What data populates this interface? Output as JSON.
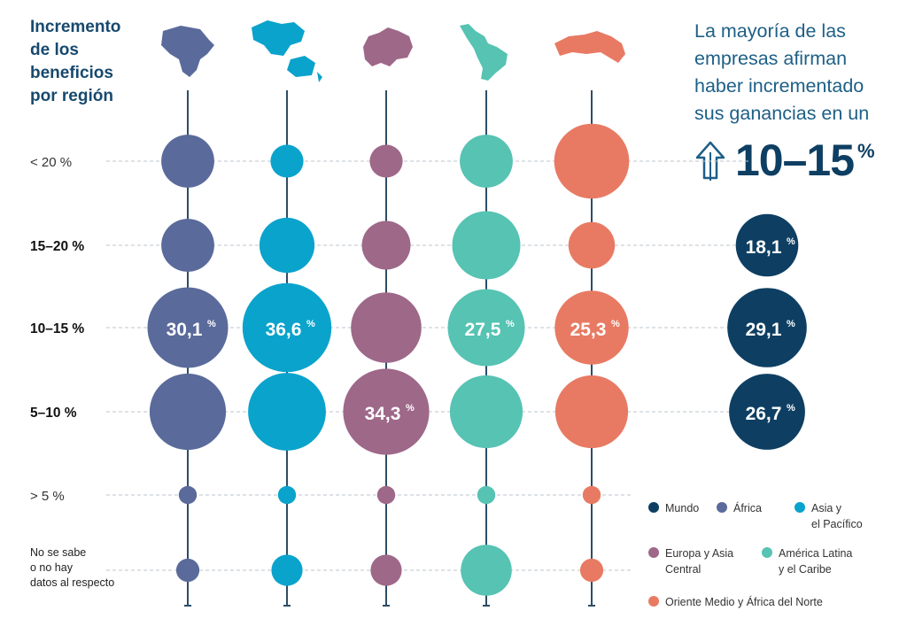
{
  "title_lines": [
    "Incremento",
    "de los",
    "beneficios",
    "por región"
  ],
  "headline_lines": [
    "La mayoría de las",
    "empresas afirman",
    "haber incrementado",
    "sus ganancias en un"
  ],
  "headline_value": "10–15",
  "headline_unit": "%",
  "chart_data": {
    "type": "bubble",
    "categories": [
      "< 20 %",
      "15–20 %",
      "10–15 %",
      "5–10 %",
      "> 5 %",
      "No se sabe o no hay datos al respecto"
    ],
    "category_bold": [
      false,
      true,
      true,
      true,
      false,
      false
    ],
    "series": [
      {
        "name": "África",
        "color": "#5a6a9b",
        "region_icon": "africa-map-icon",
        "values": [
          13,
          13,
          30.1,
          27,
          1.5,
          2.5
        ],
        "labels": [
          "",
          "",
          "30,1",
          "",
          "",
          ""
        ]
      },
      {
        "name": "Asia y el Pacífico",
        "color": "#0aa3cc",
        "region_icon": "asia-pacific-map-icon",
        "values": [
          5,
          14,
          36.6,
          28,
          1.5,
          4.5
        ],
        "labels": [
          "",
          "",
          "36,6",
          "",
          "",
          ""
        ]
      },
      {
        "name": "Europa y Asia Central",
        "color": "#9e6889",
        "region_icon": "europe-central-asia-map-icon",
        "values": [
          5,
          11,
          23,
          34.3,
          1.5,
          4.5
        ],
        "labels": [
          "",
          "",
          "",
          "34,3",
          "",
          ""
        ]
      },
      {
        "name": "América Latina y el Caribe",
        "color": "#56c3b3",
        "region_icon": "latin-america-map-icon",
        "values": [
          13,
          21.5,
          27.5,
          24.5,
          1.5,
          12
        ],
        "labels": [
          "",
          "",
          "27,5",
          "",
          "",
          ""
        ]
      },
      {
        "name": "Oriente Medio y África del Norte",
        "color": "#e87a63",
        "region_icon": "middle-east-north-africa-map-icon",
        "values": [
          26,
          10,
          25.3,
          24.5,
          1.5,
          2.5
        ],
        "labels": [
          "",
          "",
          "25,3",
          "",
          "",
          ""
        ]
      },
      {
        "name": "Mundo",
        "color": "#0e3f63",
        "region_icon": "",
        "values": [
          null,
          18.1,
          29.1,
          26.7,
          null,
          null
        ],
        "labels": [
          "",
          "18,1",
          "29,1",
          "26,7",
          "",
          ""
        ]
      }
    ],
    "value_unit": "%",
    "legend": {
      "placement": "bottom-right",
      "items": [
        {
          "label_lines": [
            "Mundo"
          ],
          "color": "#0e3f63"
        },
        {
          "label_lines": [
            "África"
          ],
          "color": "#5a6a9b"
        },
        {
          "label_lines": [
            "Asia y",
            "el Pacífico"
          ],
          "color": "#0aa3cc"
        },
        {
          "label_lines": [
            "Europa y Asia",
            "Central"
          ],
          "color": "#9e6889"
        },
        {
          "label_lines": [
            "América Latina",
            "y el Caribe"
          ],
          "color": "#56c3b3"
        },
        {
          "label_lines": [
            "Oriente Medio y África del Norte"
          ],
          "color": "#e87a63"
        }
      ]
    }
  }
}
